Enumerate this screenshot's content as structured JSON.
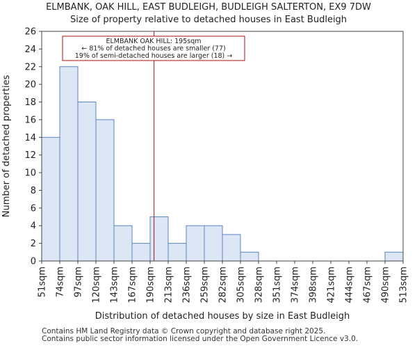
{
  "title": {
    "line1": "ELMBANK, OAK HILL, EAST BUDLEIGH, BUDLEIGH SALTERTON, EX9 7DW",
    "line2": "Size of property relative to detached houses in East Budleigh"
  },
  "chart_data": {
    "type": "bar",
    "xlabel": "Distribution of detached houses by size in East Budleigh",
    "ylabel": "Number of detached properties",
    "ylim": [
      0,
      26
    ],
    "yticks": [
      0,
      2,
      4,
      6,
      8,
      10,
      12,
      14,
      16,
      18,
      20,
      22,
      24,
      26
    ],
    "bin_edges": [
      51,
      74,
      97,
      120,
      143,
      167,
      190,
      213,
      236,
      259,
      282,
      305,
      328,
      351,
      374,
      398,
      421,
      444,
      467,
      490,
      513
    ],
    "tick_labels": [
      "51sqm",
      "74sqm",
      "97sqm",
      "120sqm",
      "143sqm",
      "167sqm",
      "190sqm",
      "213sqm",
      "236sqm",
      "259sqm",
      "282sqm",
      "305sqm",
      "328sqm",
      "351sqm",
      "374sqm",
      "398sqm",
      "421sqm",
      "444sqm",
      "467sqm",
      "490sqm",
      "513sqm"
    ],
    "values": [
      14,
      22,
      18,
      16,
      4,
      2,
      5,
      2,
      4,
      4,
      3,
      1,
      0,
      0,
      0,
      0,
      0,
      0,
      0,
      1
    ],
    "marker": {
      "value": 195,
      "color": "#aa1111"
    },
    "annotation": {
      "lines": [
        "ELMBANK OAK HILL: 195sqm",
        "← 81% of detached houses are smaller (77)",
        "19% of semi-detached houses are larger (18) →"
      ]
    },
    "bar_fill": "#dce6f5",
    "bar_edge": "#5b84c4",
    "grid": false
  },
  "footer": {
    "line1": "Contains HM Land Registry data © Crown copyright and database right 2025.",
    "line2": "Contains public sector information licensed under the Open Government Licence v3.0."
  }
}
